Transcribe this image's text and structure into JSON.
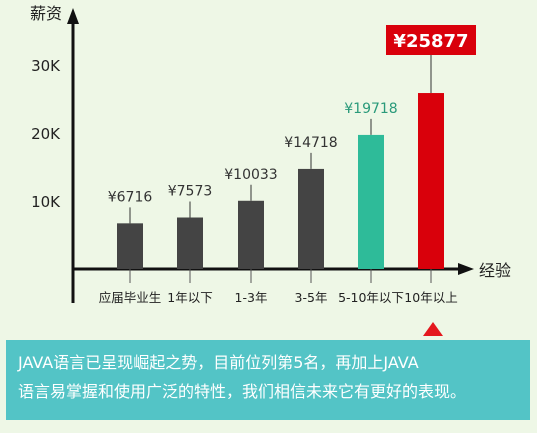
{
  "chart_data": {
    "type": "bar",
    "ylabel": "薪资",
    "xlabel": "经验",
    "ylim": [
      0,
      35000
    ],
    "yticks": [
      {
        "value": 10000,
        "label": "10K"
      },
      {
        "value": 20000,
        "label": "20K"
      },
      {
        "value": 30000,
        "label": "30K"
      }
    ],
    "categories": [
      "应届毕业生",
      "1年以下",
      "1-3年",
      "3-5年",
      "5-10年以下",
      "10年以上"
    ],
    "values": [
      6716,
      7573,
      10033,
      14718,
      19718,
      25877
    ],
    "value_labels": [
      "¥6716",
      "¥7573",
      "¥10033",
      "¥14718",
      "¥19718",
      "¥25877"
    ],
    "bar_colors": [
      "#444444",
      "#444444",
      "#444444",
      "#444444",
      "#2ebb99",
      "#d9000b"
    ],
    "label_colors": [
      "#333333",
      "#333333",
      "#333333",
      "#333333",
      "#2a9a7a",
      "#ffffff"
    ],
    "highlight_label_bg": "#d9000b",
    "grid": false
  },
  "note": {
    "line1": "JAVA语言已呈现崛起之势，目前位列第5名，再加上JAVA",
    "line2": "语言易掌握和使用广泛的特性，我们相信未来它有更好的表现。",
    "background": "#53c4c6",
    "pointer_color": "#e4181e"
  }
}
